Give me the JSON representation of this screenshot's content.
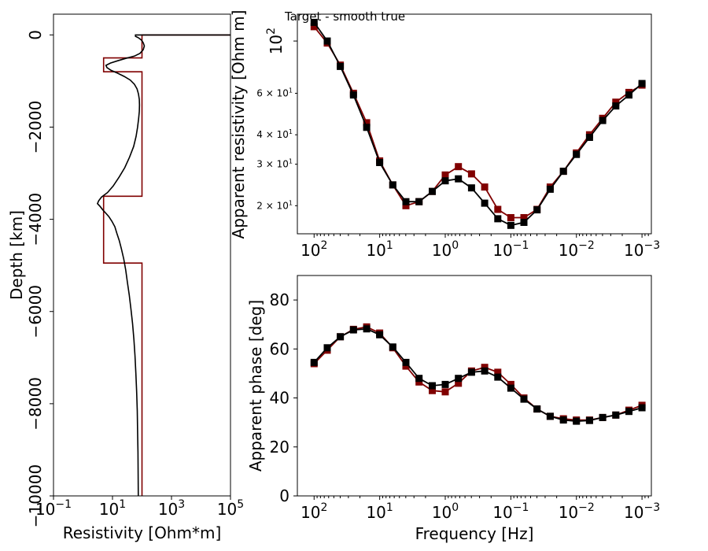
{
  "figure": {
    "suptitle": "Target - smooth true"
  },
  "chart_data": [
    {
      "id": "depth",
      "type": "line",
      "xlabel": "Resistivity [Ohm*m]",
      "ylabel": "Depth [km]",
      "xscale": "log",
      "xlim": [
        0.1,
        100000
      ],
      "ylim": [
        -10000,
        450
      ],
      "xticks": [
        {
          "value": 0.1,
          "base": "10",
          "exp": "−1"
        },
        {
          "value": 10,
          "base": "10",
          "exp": "1"
        },
        {
          "value": 1000,
          "base": "10",
          "exp": "3"
        },
        {
          "value": 100000,
          "base": "10",
          "exp": "5"
        }
      ],
      "yticks": [
        {
          "value": 0,
          "label": "0"
        },
        {
          "value": -2000,
          "label": "−2000"
        },
        {
          "value": -4000,
          "label": "−4000"
        },
        {
          "value": -6000,
          "label": "−6000"
        },
        {
          "value": -8000,
          "label": "−8000"
        },
        {
          "value": -10000,
          "label": "−10000"
        }
      ],
      "series": [
        {
          "color": "#800000",
          "points": [
            [
              100000,
              0
            ],
            [
              100,
              0
            ],
            [
              100,
              -500
            ],
            [
              5,
              -500
            ],
            [
              5,
              -800
            ],
            [
              100,
              -800
            ],
            [
              100,
              -3500
            ],
            [
              5,
              -3500
            ],
            [
              5,
              -4950
            ],
            [
              100,
              -4950
            ],
            [
              100,
              -10000
            ]
          ]
        },
        {
          "color": "#000000",
          "points": [
            [
              100000,
              0
            ],
            [
              60,
              0
            ],
            [
              60,
              -30
            ],
            [
              75,
              -60
            ],
            [
              95,
              -110
            ],
            [
              110,
              -170
            ],
            [
              120,
              -240
            ],
            [
              110,
              -320
            ],
            [
              85,
              -400
            ],
            [
              55,
              -460
            ],
            [
              28,
              -510
            ],
            [
              15,
              -560
            ],
            [
              8.5,
              -610
            ],
            [
              6,
              -660
            ],
            [
              6.5,
              -710
            ],
            [
              9,
              -770
            ],
            [
              15,
              -830
            ],
            [
              25,
              -900
            ],
            [
              40,
              -980
            ],
            [
              55,
              -1070
            ],
            [
              68,
              -1170
            ],
            [
              76,
              -1280
            ],
            [
              81,
              -1400
            ],
            [
              82,
              -1520
            ],
            [
              81,
              -1660
            ],
            [
              77,
              -1820
            ],
            [
              71,
              -2000
            ],
            [
              63,
              -2200
            ],
            [
              52,
              -2420
            ],
            [
              38,
              -2650
            ],
            [
              26,
              -2880
            ],
            [
              17,
              -3080
            ],
            [
              10.5,
              -3280
            ],
            [
              6.8,
              -3420
            ],
            [
              4.2,
              -3520
            ],
            [
              3.4,
              -3600
            ],
            [
              3.1,
              -3660
            ],
            [
              3.8,
              -3720
            ],
            [
              4.6,
              -3790
            ],
            [
              5.8,
              -3860
            ],
            [
              7.5,
              -3940
            ],
            [
              9.5,
              -4040
            ],
            [
              12,
              -4160
            ],
            [
              14,
              -4300
            ],
            [
              17,
              -4460
            ],
            [
              20,
              -4640
            ],
            [
              24,
              -4860
            ],
            [
              28,
              -5100
            ],
            [
              32,
              -5360
            ],
            [
              37,
              -5640
            ],
            [
              42,
              -5940
            ],
            [
              48,
              -6260
            ],
            [
              53,
              -6600
            ],
            [
              58,
              -6960
            ],
            [
              62,
              -7340
            ],
            [
              66,
              -7740
            ],
            [
              69,
              -8160
            ],
            [
              71,
              -8600
            ],
            [
              73,
              -9060
            ],
            [
              74,
              -9520
            ],
            [
              75,
              -10000
            ]
          ]
        }
      ]
    },
    {
      "id": "resistivity",
      "type": "line",
      "xlabel": "",
      "ylabel": "Apparent resistivity [Ohm m]",
      "xscale": "log",
      "yscale": "log",
      "xinvert": true,
      "xlim": [
        180,
        0.00072
      ],
      "ylim": [
        15.2,
        130
      ],
      "xticks": [
        {
          "value": 100,
          "base": "10",
          "exp": "2"
        },
        {
          "value": 10,
          "base": "10",
          "exp": "1"
        },
        {
          "value": 1,
          "base": "10",
          "exp": "0"
        },
        {
          "value": 0.1,
          "base": "10",
          "exp": "−1"
        },
        {
          "value": 0.01,
          "base": "10",
          "exp": "−2"
        },
        {
          "value": 0.001,
          "base": "10",
          "exp": "−3"
        }
      ],
      "yticks": [
        {
          "value": 100,
          "base": "10",
          "exp": "2",
          "major": true
        },
        {
          "value": 60,
          "mant": "6 × ",
          "base": "10",
          "exp": "1",
          "major": false
        },
        {
          "value": 40,
          "mant": "4 × ",
          "base": "10",
          "exp": "1",
          "major": false
        },
        {
          "value": 30,
          "mant": "3 × ",
          "base": "10",
          "exp": "1",
          "major": false
        },
        {
          "value": 20,
          "mant": "2 × ",
          "base": "10",
          "exp": "1",
          "major": false
        }
      ],
      "x": [
        100,
        63.1,
        39.8,
        25.1,
        15.8,
        10,
        6.31,
        3.98,
        2.51,
        1.58,
        1,
        0.631,
        0.398,
        0.251,
        0.158,
        0.1,
        0.0631,
        0.0398,
        0.0251,
        0.0158,
        0.01,
        0.00631,
        0.00398,
        0.00251,
        0.00158,
        0.001
      ],
      "series": [
        {
          "color": "#800000",
          "values": [
            115,
            98,
            79,
            60,
            45,
            31,
            24.5,
            20,
            20.8,
            23,
            27,
            29.3,
            27.3,
            24,
            19.3,
            17.8,
            17.8,
            19.3,
            24,
            28,
            33.5,
            40,
            47,
            55,
            60.5,
            65
          ]
        },
        {
          "color": "#000000",
          "values": [
            120,
            100,
            78,
            59,
            43,
            30.5,
            24.5,
            20.8,
            20.8,
            23,
            25.5,
            26,
            23.8,
            20.5,
            17.6,
            16.5,
            17,
            19.2,
            23.5,
            28,
            33,
            39,
            46,
            53,
            59,
            66
          ]
        }
      ]
    },
    {
      "id": "phase",
      "type": "line",
      "xlabel": "Frequency [Hz]",
      "ylabel": "Apparent phase [deg]",
      "xscale": "log",
      "xinvert": true,
      "xlim": [
        180,
        0.00072
      ],
      "ylim": [
        0,
        90
      ],
      "xticks": [
        {
          "value": 100,
          "base": "10",
          "exp": "2"
        },
        {
          "value": 10,
          "base": "10",
          "exp": "1"
        },
        {
          "value": 1,
          "base": "10",
          "exp": "0"
        },
        {
          "value": 0.1,
          "base": "10",
          "exp": "−1"
        },
        {
          "value": 0.01,
          "base": "10",
          "exp": "−2"
        },
        {
          "value": 0.001,
          "base": "10",
          "exp": "−3"
        }
      ],
      "yticks": [
        {
          "value": 0,
          "label": "0"
        },
        {
          "value": 20,
          "label": "20"
        },
        {
          "value": 40,
          "label": "40"
        },
        {
          "value": 60,
          "label": "60"
        },
        {
          "value": 80,
          "label": "80"
        }
      ],
      "x": [
        100,
        63.1,
        39.8,
        25.1,
        15.8,
        10,
        6.31,
        3.98,
        2.51,
        1.58,
        1,
        0.631,
        0.398,
        0.251,
        0.158,
        0.1,
        0.0631,
        0.0398,
        0.0251,
        0.0158,
        0.01,
        0.00631,
        0.00398,
        0.00251,
        0.00158,
        0.001
      ],
      "series": [
        {
          "color": "#800000",
          "values": [
            54,
            59.5,
            65,
            68,
            69,
            66.5,
            60.5,
            53,
            46.5,
            43,
            42.5,
            46,
            51,
            52.5,
            50.5,
            45.5,
            40,
            35.5,
            32.5,
            31.5,
            31,
            31,
            32,
            33,
            35,
            37
          ]
        },
        {
          "color": "#000000",
          "values": [
            54.5,
            60.5,
            65,
            67.8,
            68.2,
            65.8,
            60.8,
            54.5,
            48,
            45,
            45.5,
            48,
            50.5,
            51,
            48.5,
            44,
            39.5,
            35.5,
            32.5,
            31,
            30.5,
            30.8,
            32,
            33,
            34.5,
            36
          ]
        }
      ]
    }
  ]
}
